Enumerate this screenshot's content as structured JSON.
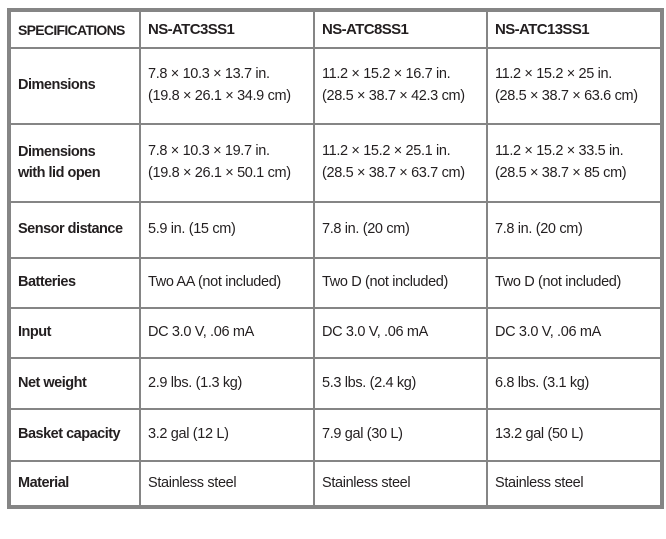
{
  "colors": {
    "border_gray": "#858585",
    "text": "#231f20",
    "background": "#ffffff"
  },
  "table": {
    "headers": [
      "SPECIFICATIONS",
      "NS-ATC3SS1",
      "NS-ATC8SS1",
      "NS-ATC13SS1"
    ],
    "rows": [
      {
        "label": "Dimensions",
        "values": [
          "7.8 × 10.3 × 13.7 in.\n(19.8 × 26.1 × 34.9 cm)",
          "11.2 × 15.2 × 16.7 in.\n(28.5 × 38.7 × 42.3 cm)",
          "11.2 × 15.2 × 25 in.\n(28.5 × 38.7 × 63.6 cm)"
        ]
      },
      {
        "label": "Dimensions\nwith lid open",
        "values": [
          "7.8 × 10.3 × 19.7 in.\n(19.8 × 26.1 × 50.1 cm)",
          "11.2 × 15.2 × 25.1 in.\n(28.5 × 38.7 × 63.7 cm)",
          "11.2 × 15.2 × 33.5 in.\n(28.5 × 38.7 × 85 cm)"
        ]
      },
      {
        "label": "Sensor distance",
        "values": [
          "5.9 in. (15 cm)",
          "7.8 in. (20 cm)",
          "7.8 in. (20 cm)"
        ]
      },
      {
        "label": "Batteries",
        "values": [
          "Two AA (not included)",
          "Two D (not included)",
          "Two D (not included)"
        ]
      },
      {
        "label": "Input",
        "values": [
          "DC 3.0 V, .06 mA",
          "DC 3.0 V, .06 mA",
          "DC 3.0 V, .06 mA"
        ]
      },
      {
        "label": "Net weight",
        "values": [
          "2.9 lbs. (1.3 kg)",
          "5.3 lbs. (2.4 kg)",
          "6.8 lbs. (3.1 kg)"
        ]
      },
      {
        "label": "Basket capacity",
        "values": [
          "3.2 gal (12 L)",
          "7.9 gal (30 L)",
          "13.2 gal (50 L)"
        ]
      },
      {
        "label": "Material",
        "values": [
          "Stainless steel",
          "Stainless steel",
          "Stainless steel"
        ]
      }
    ]
  }
}
